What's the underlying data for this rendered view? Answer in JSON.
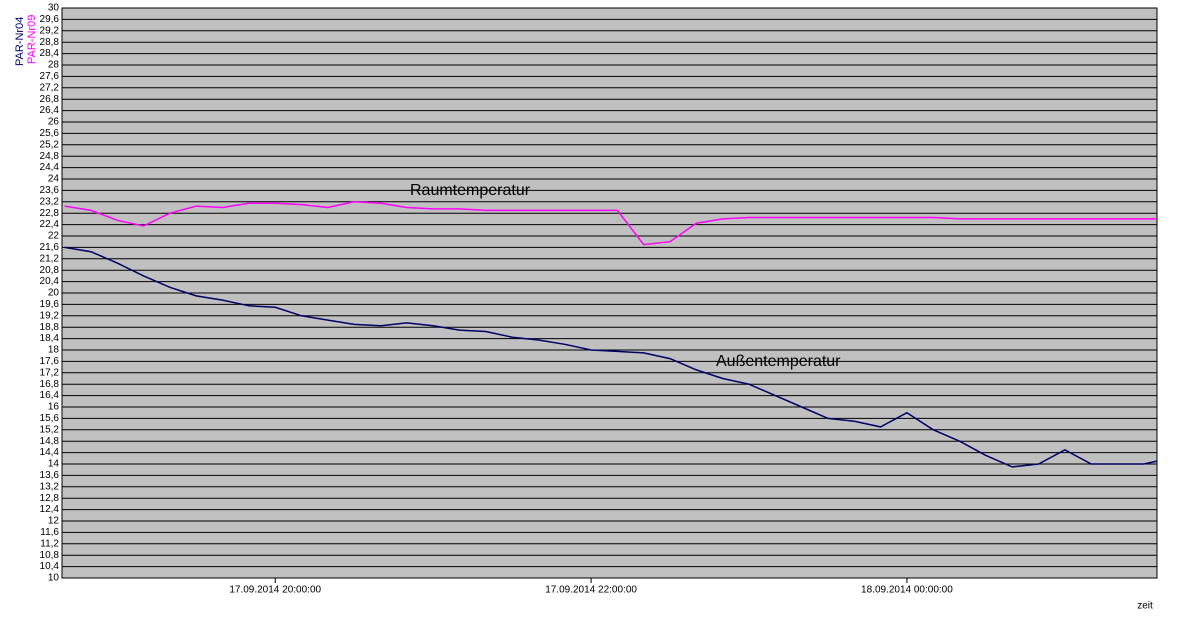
{
  "chart_data": {
    "type": "line",
    "x_label": "zeit",
    "x": [
      "17.09.2014 18:40:00",
      "17.09.2014 18:50:00",
      "17.09.2014 19:00:00",
      "17.09.2014 19:10:00",
      "17.09.2014 19:20:00",
      "17.09.2014 19:30:00",
      "17.09.2014 19:40:00",
      "17.09.2014 19:50:00",
      "17.09.2014 20:00:00",
      "17.09.2014 20:10:00",
      "17.09.2014 20:20:00",
      "17.09.2014 20:30:00",
      "17.09.2014 20:40:00",
      "17.09.2014 20:50:00",
      "17.09.2014 21:00:00",
      "17.09.2014 21:10:00",
      "17.09.2014 21:20:00",
      "17.09.2014 21:30:00",
      "17.09.2014 21:40:00",
      "17.09.2014 21:50:00",
      "17.09.2014 22:00:00",
      "17.09.2014 22:10:00",
      "17.09.2014 22:20:00",
      "17.09.2014 22:30:00",
      "17.09.2014 22:40:00",
      "17.09.2014 22:50:00",
      "17.09.2014 23:00:00",
      "17.09.2014 23:10:00",
      "17.09.2014 23:20:00",
      "17.09.2014 23:30:00",
      "17.09.2014 23:40:00",
      "17.09.2014 23:50:00",
      "18.09.2014 00:00:00",
      "18.09.2014 00:10:00",
      "18.09.2014 00:20:00",
      "18.09.2014 00:30:00",
      "18.09.2014 00:40:00",
      "18.09.2014 00:50:00",
      "18.09.2014 01:00:00",
      "18.09.2014 01:10:00",
      "18.09.2014 01:20:00",
      "18.09.2014 01:30:00",
      "18.09.2014 01:35:00"
    ],
    "series": [
      {
        "name": "PAR-Nr04",
        "color": "#000066",
        "values": [
          21.6,
          21.45,
          21.05,
          20.6,
          20.2,
          19.9,
          19.75,
          19.55,
          19.5,
          19.2,
          19.05,
          18.9,
          18.85,
          18.95,
          18.85,
          18.7,
          18.65,
          18.45,
          18.35,
          18.2,
          18.0,
          17.95,
          17.9,
          17.7,
          17.3,
          17.0,
          16.8,
          16.4,
          16.0,
          15.6,
          15.5,
          15.3,
          15.8,
          15.2,
          14.8,
          14.3,
          13.9,
          14.0,
          14.5,
          14.0,
          14.0,
          14.0,
          14.1
        ]
      },
      {
        "name": "PAR-Nr09",
        "color": "#ff00ff",
        "values": [
          23.05,
          22.9,
          22.55,
          22.35,
          22.8,
          23.05,
          23.0,
          23.15,
          23.15,
          23.1,
          23.0,
          23.2,
          23.15,
          23.0,
          22.95,
          22.95,
          22.9,
          22.9,
          22.9,
          22.9,
          22.9,
          22.9,
          21.7,
          21.8,
          22.45,
          22.6,
          22.65,
          22.65,
          22.65,
          22.65,
          22.65,
          22.65,
          22.65,
          22.65,
          22.6,
          22.6,
          22.6,
          22.6,
          22.6,
          22.6,
          22.6,
          22.6,
          22.6
        ]
      }
    ],
    "annotations": [
      "Raumtemperatur",
      "Außentemperatur"
    ],
    "xlim": [
      "17.09.2014 18:39:00",
      "18.09.2014 01:35:00"
    ],
    "xticks": [
      "17.09.2014 20:00:00",
      "17.09.2014 22:00:00",
      "18.09.2014 00:00:00"
    ],
    "ylim": [
      10,
      30
    ],
    "yticks": [
      30,
      {
        "value": 29.6,
        "label": "29,6"
      },
      {
        "value": 29.2,
        "label": "29,2"
      },
      {
        "value": 28.8,
        "label": "28,8"
      },
      {
        "value": 28.4,
        "label": "28,4"
      },
      28,
      {
        "value": 27.6,
        "label": "27,6"
      },
      {
        "value": 27.2,
        "label": "27,2"
      },
      {
        "value": 26.8,
        "label": "26,8"
      },
      {
        "value": 26.4,
        "label": "26,4"
      },
      26,
      {
        "value": 25.6,
        "label": "25,6"
      },
      {
        "value": 25.2,
        "label": "25,2"
      },
      {
        "value": 24.8,
        "label": "24,8"
      },
      {
        "value": 24.4,
        "label": "24,4"
      },
      24,
      {
        "value": 23.6,
        "label": "23,6"
      },
      {
        "value": 23.2,
        "label": "23,2"
      },
      {
        "value": 22.8,
        "label": "22,8"
      },
      {
        "value": 22.4,
        "label": "22,4"
      },
      22,
      {
        "value": 21.6,
        "label": "21,6"
      },
      {
        "value": 21.2,
        "label": "21,2"
      },
      {
        "value": 20.8,
        "label": "20,8"
      },
      {
        "value": 20.4,
        "label": "20,4"
      },
      20,
      {
        "value": 19.6,
        "label": "19,6"
      },
      {
        "value": 19.2,
        "label": "19,2"
      },
      {
        "value": 18.8,
        "label": "18,8"
      },
      {
        "value": 18.4,
        "label": "18,4"
      },
      18,
      {
        "value": 17.6,
        "label": "17,6"
      },
      {
        "value": 17.2,
        "label": "17,2"
      },
      {
        "value": 16.8,
        "label": "16,8"
      },
      {
        "value": 16.4,
        "label": "16,4"
      },
      16,
      {
        "value": 15.6,
        "label": "15,6"
      },
      {
        "value": 15.2,
        "label": "15,2"
      },
      {
        "value": 14.8,
        "label": "14,8"
      },
      {
        "value": 14.4,
        "label": "14,4"
      },
      14,
      {
        "value": 13.6,
        "label": "13,6"
      },
      {
        "value": 13.2,
        "label": "13,2"
      },
      {
        "value": 12.8,
        "label": "12,8"
      },
      {
        "value": 12.4,
        "label": "12,4"
      },
      12,
      {
        "value": 11.6,
        "label": "11,6"
      },
      {
        "value": 11.2,
        "label": "11,2"
      },
      {
        "value": 10.8,
        "label": "10,8"
      },
      {
        "value": 10.4,
        "label": "10,4"
      },
      10
    ],
    "grid": true
  }
}
